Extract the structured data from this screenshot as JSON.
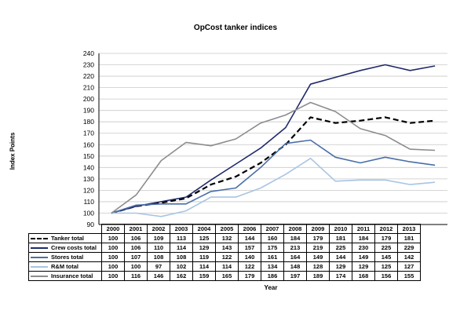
{
  "chart_data": {
    "type": "line",
    "title": "OpCost tanker indices",
    "xlabel": "Year",
    "ylabel": "Index Points",
    "ylim": [
      90,
      240
    ],
    "yticks": [
      90,
      100,
      110,
      120,
      130,
      140,
      150,
      160,
      170,
      180,
      190,
      200,
      210,
      220,
      230,
      240
    ],
    "grid": "horizontal",
    "legend": "data table below plot",
    "x": [
      "2000",
      "2001",
      "2002",
      "2003",
      "2004",
      "2005",
      "2006",
      "2007",
      "2008",
      "2009",
      "2010",
      "2011",
      "2012",
      "2013"
    ],
    "series": [
      {
        "name": "Tanker total",
        "color": "#000000",
        "dash": true,
        "values": [
          100,
          106,
          109,
          113,
          125,
          132,
          144,
          160,
          184,
          179,
          181,
          184,
          179,
          181
        ]
      },
      {
        "name": "Crew costs total",
        "color": "#1f2a6b",
        "dash": false,
        "values": [
          100,
          106,
          110,
          114,
          129,
          143,
          157,
          175,
          213,
          219,
          225,
          230,
          225,
          229
        ]
      },
      {
        "name": "Stores total",
        "color": "#4a6ea8",
        "dash": false,
        "values": [
          100,
          107,
          108,
          108,
          119,
          122,
          140,
          161,
          164,
          149,
          144,
          149,
          145,
          142
        ]
      },
      {
        "name": "R&M total",
        "color": "#a9c4e2",
        "dash": false,
        "values": [
          100,
          100,
          97,
          102,
          114,
          114,
          122,
          134,
          148,
          128,
          129,
          129,
          125,
          127
        ]
      },
      {
        "name": "Insurance total",
        "color": "#8c8c8c",
        "dash": false,
        "values": [
          100,
          116,
          146,
          162,
          159,
          165,
          179,
          186,
          197,
          189,
          174,
          168,
          156,
          155
        ]
      }
    ]
  }
}
